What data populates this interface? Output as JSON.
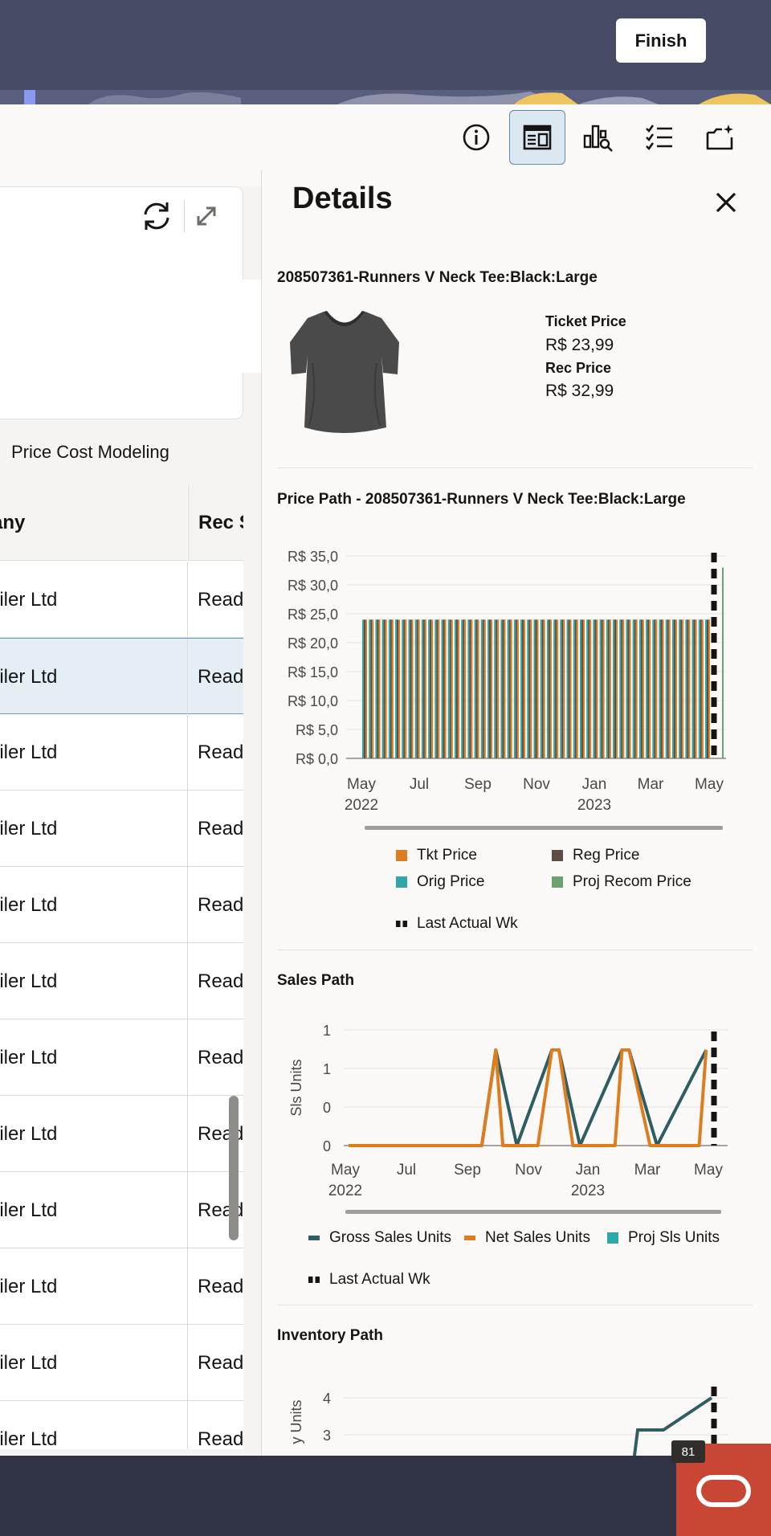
{
  "header": {
    "finish_label": "Finish"
  },
  "toolbar": {
    "icons": [
      "info-icon",
      "details-panel-icon",
      "chart-search-icon",
      "checklist-icon",
      "export-icon"
    ],
    "active": "details-panel-icon"
  },
  "main": {
    "tab_label": "Price Cost Modeling",
    "table": {
      "headers": [
        "any",
        "Rec S"
      ],
      "rows": [
        [
          "ailer Ltd",
          "Read"
        ],
        [
          "ailer Ltd",
          "Read"
        ],
        [
          "ailer Ltd",
          "Read"
        ],
        [
          "ailer Ltd",
          "Read"
        ],
        [
          "ailer Ltd",
          "Read"
        ],
        [
          "ailer Ltd",
          "Read"
        ],
        [
          "ailer Ltd",
          "Read"
        ],
        [
          "ailer Ltd",
          "Read"
        ],
        [
          "ailer Ltd",
          "Read"
        ],
        [
          "ailer Ltd",
          "Read"
        ],
        [
          "ailer Ltd",
          "Read"
        ],
        [
          "ailer Ltd",
          "Read"
        ]
      ],
      "selected_row": 1
    }
  },
  "details": {
    "title": "Details",
    "item_title": "208507361-Runners V Neck Tee:Black:Large",
    "ticket_price_label": "Ticket Price",
    "ticket_price_value": "R$ 23,99",
    "rec_price_label": "Rec Price",
    "rec_price_value": "R$ 32,99",
    "price_path_title": "Price Path  -  208507361-Runners V Neck Tee:Black:Large",
    "sales_path_title": "Sales Path",
    "inventory_path_title": "Inventory Path"
  },
  "colors": {
    "tkt": "#dd7d1d",
    "reg": "#5d4d45",
    "orig": "#2ea7a8",
    "proj": "#6aa36f",
    "gross": "#2e5e64",
    "net": "#dd7d1d"
  },
  "chart_data": [
    {
      "type": "bar",
      "name": "price-path",
      "title": "Price Path  -  208507361-Runners V Neck Tee:Black:Large",
      "y_ticks": [
        "R$ 35,0",
        "R$ 30,0",
        "R$ 25,0",
        "R$ 20,0",
        "R$ 15,0",
        "R$ 10,0",
        "R$ 5,0",
        "R$ 0,0"
      ],
      "ylim": [
        0,
        35
      ],
      "x_ticks": [
        [
          "May",
          "2022"
        ],
        [
          "Jul",
          ""
        ],
        [
          "Sep",
          ""
        ],
        [
          "Nov",
          ""
        ],
        [
          "Jan",
          "2023"
        ],
        [
          "Mar",
          ""
        ],
        [
          "May",
          ""
        ]
      ],
      "weeks": 53,
      "series_values": {
        "Tkt Price": 23.99,
        "Reg Price": 23.99,
        "Orig Price": 23.99
      },
      "proj_recom_price_last": 32.99,
      "legend": [
        "Tkt Price",
        "Reg Price",
        "Orig Price",
        "Proj Recom Price",
        "Last Actual Wk"
      ]
    },
    {
      "type": "line",
      "name": "sales-path",
      "title": "Sales Path",
      "ylabel": "Sls Units",
      "y_ticks": [
        "1",
        "1",
        "0",
        "0"
      ],
      "ylim": [
        0,
        1
      ],
      "x_ticks": [
        [
          "May",
          "2022"
        ],
        [
          "Jul",
          ""
        ],
        [
          "Sep",
          ""
        ],
        [
          "Nov",
          ""
        ],
        [
          "Jan",
          "2023"
        ],
        [
          "Mar",
          ""
        ],
        [
          "May",
          ""
        ]
      ],
      "weeks": 53,
      "series": [
        {
          "name": "Gross Sales Units",
          "points": [
            [
              0,
              0
            ],
            [
              19,
              0
            ],
            [
              21,
              1
            ],
            [
              24,
              0
            ],
            [
              29,
              1
            ],
            [
              30,
              1
            ],
            [
              33,
              0
            ],
            [
              39,
              1
            ],
            [
              40,
              1
            ],
            [
              44,
              0
            ],
            [
              51,
              1
            ]
          ]
        },
        {
          "name": "Net Sales Units",
          "points": [
            [
              0,
              0
            ],
            [
              19,
              0
            ],
            [
              21,
              1
            ],
            [
              22,
              0
            ],
            [
              27,
              0
            ],
            [
              29,
              1
            ],
            [
              30,
              1
            ],
            [
              32,
              0
            ],
            [
              38,
              0
            ],
            [
              39,
              1
            ],
            [
              40,
              1
            ],
            [
              43,
              0
            ],
            [
              50,
              0
            ],
            [
              51,
              1
            ]
          ]
        }
      ],
      "legend": [
        "Gross Sales Units",
        "Net Sales Units",
        "Proj Sls Units",
        "Last Actual Wk"
      ]
    },
    {
      "type": "line",
      "name": "inventory-path",
      "title": "Inventory Path",
      "ylabel": "y Units",
      "y_ticks": [
        "4",
        "3"
      ],
      "weeks": 53
    }
  ]
}
